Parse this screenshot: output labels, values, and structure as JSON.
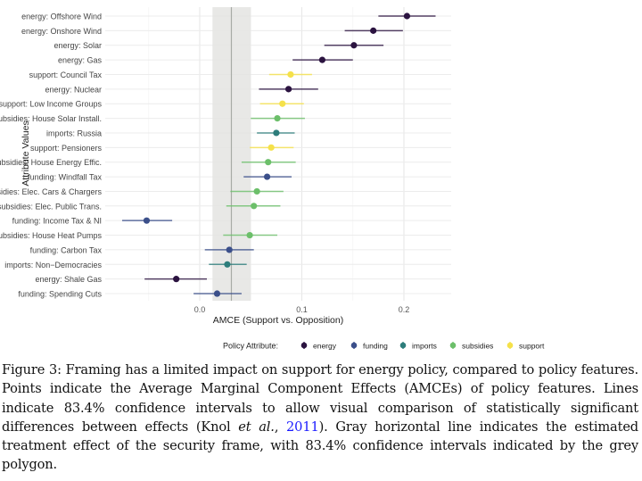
{
  "chart_data": {
    "type": "scatter",
    "subtype": "dot-and-whisker",
    "xlabel": "AMCE (Support vs. Opposition)",
    "ylabel": "Attribute Values",
    "xlim": [
      -0.093,
      0.246
    ],
    "xticks": [
      0.0,
      0.1,
      0.2
    ],
    "xtick_labels": [
      "0.0",
      "0.1",
      "0.2"
    ],
    "grid": true,
    "reference": {
      "label": "security frame",
      "estimate": 0.031,
      "ci": [
        0.0125,
        0.05
      ]
    },
    "legend": {
      "title": "Policy Attribute:",
      "placement": "bottom",
      "entries": [
        {
          "name": "energy",
          "color": "#2b1340"
        },
        {
          "name": "funding",
          "color": "#3b4f8a"
        },
        {
          "name": "imports",
          "color": "#2d7d7b"
        },
        {
          "name": "subsidies",
          "color": "#6cbf6a"
        },
        {
          "name": "support",
          "color": "#f5e14a"
        }
      ]
    },
    "points": [
      {
        "label": "energy: Offshore Wind",
        "group": "energy",
        "estimate": 0.203,
        "lower": 0.175,
        "upper": 0.231
      },
      {
        "label": "energy: Onshore Wind",
        "group": "energy",
        "estimate": 0.17,
        "lower": 0.142,
        "upper": 0.199
      },
      {
        "label": "energy: Solar",
        "group": "energy",
        "estimate": 0.151,
        "lower": 0.122,
        "upper": 0.18
      },
      {
        "label": "energy: Gas",
        "group": "energy",
        "estimate": 0.12,
        "lower": 0.091,
        "upper": 0.15
      },
      {
        "label": "support: Council Tax",
        "group": "support",
        "estimate": 0.089,
        "lower": 0.068,
        "upper": 0.11
      },
      {
        "label": "energy: Nuclear",
        "group": "energy",
        "estimate": 0.087,
        "lower": 0.058,
        "upper": 0.116
      },
      {
        "label": "support: Low Income Groups",
        "group": "support",
        "estimate": 0.081,
        "lower": 0.059,
        "upper": 0.102
      },
      {
        "label": "subsidies: House Solar Install.",
        "group": "subsidies",
        "estimate": 0.076,
        "lower": 0.05,
        "upper": 0.103
      },
      {
        "label": "imports: Russia",
        "group": "imports",
        "estimate": 0.075,
        "lower": 0.056,
        "upper": 0.093
      },
      {
        "label": "support: Pensioners",
        "group": "support",
        "estimate": 0.07,
        "lower": 0.049,
        "upper": 0.092
      },
      {
        "label": "subsidies: House Energy Effic.",
        "group": "subsidies",
        "estimate": 0.067,
        "lower": 0.041,
        "upper": 0.094
      },
      {
        "label": "funding: Windfall Tax",
        "group": "funding",
        "estimate": 0.066,
        "lower": 0.043,
        "upper": 0.09
      },
      {
        "label": "subsidies: Elec. Cars & Chargers",
        "group": "subsidies",
        "estimate": 0.056,
        "lower": 0.03,
        "upper": 0.082
      },
      {
        "label": "subsidies: Elec. Public Trans.",
        "group": "subsidies",
        "estimate": 0.053,
        "lower": 0.026,
        "upper": 0.079
      },
      {
        "label": "funding: Income Tax & NI",
        "group": "funding",
        "estimate": -0.052,
        "lower": -0.076,
        "upper": -0.027
      },
      {
        "label": "subsidies: House Heat Pumps",
        "group": "subsidies",
        "estimate": 0.049,
        "lower": 0.023,
        "upper": 0.076
      },
      {
        "label": "funding: Carbon Tax",
        "group": "funding",
        "estimate": 0.029,
        "lower": 0.005,
        "upper": 0.053
      },
      {
        "label": "imports: Non−Democracies",
        "group": "imports",
        "estimate": 0.027,
        "lower": 0.009,
        "upper": 0.046
      },
      {
        "label": "energy: Shale Gas",
        "group": "energy",
        "estimate": -0.023,
        "lower": -0.054,
        "upper": 0.007
      },
      {
        "label": "funding: Spending Cuts",
        "group": "funding",
        "estimate": 0.017,
        "lower": -0.006,
        "upper": 0.041
      }
    ]
  },
  "caption": {
    "before": "Figure 3: Framing has a limited impact on support for energy policy, compared to policy features.  Points indicate the Average Marginal Component Effects (AMCEs) of policy features. Lines indicate 83.4% confidence intervals to allow visual comparison of statistically significant differences between effects (Knol ",
    "etal": "et al.",
    "comma": ", ",
    "year": "2011",
    "after": ").  Gray horizontal line indicates the estimated treatment effect of the security frame, with 83.4% confidence intervals indicated by the grey polygon."
  }
}
